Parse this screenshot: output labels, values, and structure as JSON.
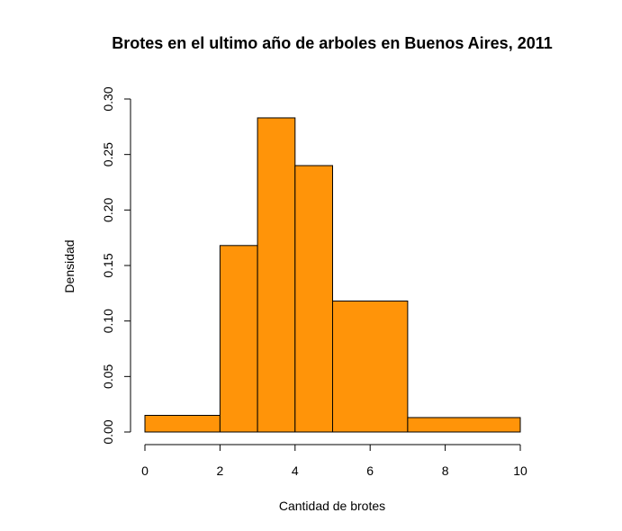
{
  "chart_data": {
    "type": "bar",
    "title": "Brotes en el ultimo año de arboles en Buenos Aires, 2011",
    "xlabel": "Cantidad de brotes",
    "ylabel": "Densidad",
    "xlim": [
      0,
      10
    ],
    "ylim": [
      0,
      0.3
    ],
    "xticks": [
      "0",
      "2",
      "4",
      "6",
      "8",
      "10"
    ],
    "yticks": [
      "0.00",
      "0.05",
      "0.10",
      "0.15",
      "0.20",
      "0.25",
      "0.30"
    ],
    "bins": [
      {
        "from": 0,
        "to": 2,
        "value": 0.015
      },
      {
        "from": 2,
        "to": 3,
        "value": 0.168
      },
      {
        "from": 3,
        "to": 4,
        "value": 0.283
      },
      {
        "from": 4,
        "to": 5,
        "value": 0.24
      },
      {
        "from": 5,
        "to": 7,
        "value": 0.118
      },
      {
        "from": 7,
        "to": 10,
        "value": 0.013
      }
    ],
    "bar_color": "#FF9409",
    "grid": false,
    "legend": "none"
  }
}
